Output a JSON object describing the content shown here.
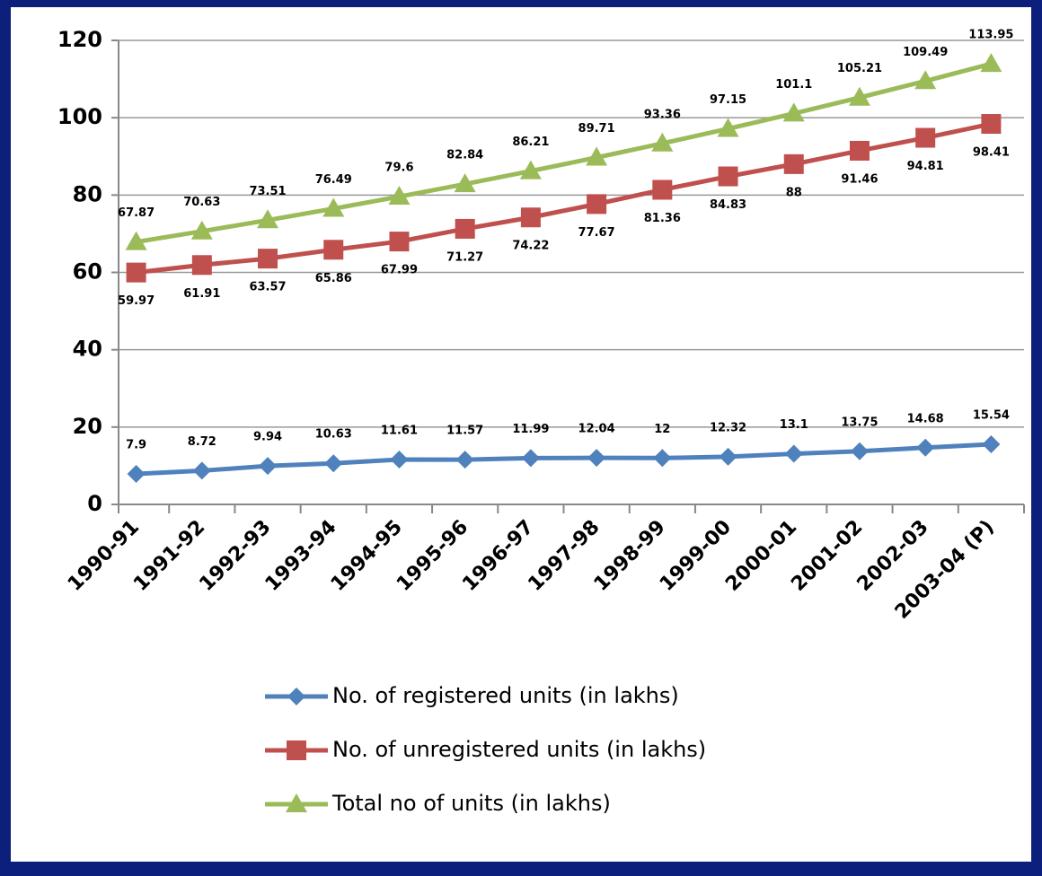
{
  "chart_data": {
    "type": "line",
    "categories": [
      "1990-91",
      "1991-92",
      "1992-93",
      "1993-94",
      "1994-95",
      "1995-96",
      "1996-97",
      "1997-98",
      "1998-99",
      "1999-00",
      "2000-01",
      "2001-02",
      "2002-03",
      "2003-04 (P)"
    ],
    "series": [
      {
        "name": "No. of registered units (in lakhs)",
        "color": "#4f81bd",
        "marker": "diamond",
        "values": [
          7.9,
          8.72,
          9.94,
          10.63,
          11.61,
          11.57,
          11.99,
          12.04,
          12,
          12.32,
          13.1,
          13.75,
          14.68,
          15.54
        ]
      },
      {
        "name": "No. of unregistered units (in lakhs)",
        "color": "#c0504d",
        "marker": "square",
        "values": [
          59.97,
          61.91,
          63.57,
          65.86,
          67.99,
          71.27,
          74.22,
          77.67,
          81.36,
          84.83,
          88,
          91.46,
          94.81,
          98.41
        ]
      },
      {
        "name": "Total no of units (in lakhs)",
        "color": "#9bbb59",
        "marker": "triangle",
        "values": [
          67.87,
          70.63,
          73.51,
          76.49,
          79.6,
          82.84,
          86.21,
          89.71,
          93.36,
          97.15,
          101.1,
          105.21,
          109.49,
          113.95
        ]
      }
    ],
    "ylim": [
      0,
      120
    ],
    "yticks": [
      0,
      20,
      40,
      60,
      80,
      100,
      120
    ],
    "grid": true,
    "legend": "bottom"
  }
}
